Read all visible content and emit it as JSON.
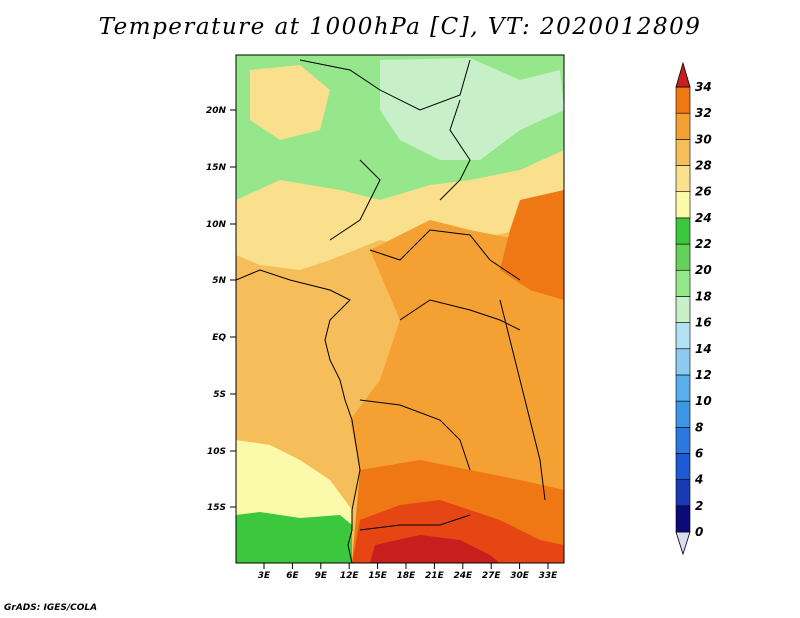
{
  "title": "Temperature at 1000hPa [C], VT: 2020012809",
  "footer": "GrADS: IGES/COLA",
  "map": {
    "lat_labels": [
      "20N",
      "15N",
      "10N",
      "5N",
      "EQ",
      "5S",
      "10S",
      "15S"
    ],
    "lon_labels": [
      "3E",
      "6E",
      "9E",
      "12E",
      "15E",
      "18E",
      "21E",
      "24E",
      "27E",
      "30E",
      "33E"
    ]
  },
  "colorbar": {
    "levels": [
      "0",
      "2",
      "4",
      "6",
      "8",
      "10",
      "12",
      "14",
      "16",
      "18",
      "20",
      "22",
      "24",
      "26",
      "28",
      "30",
      "32",
      "34"
    ],
    "colors": [
      "#0a0a78",
      "#1a3ab4",
      "#1e5ad2",
      "#2a78e0",
      "#3c96e6",
      "#5aaeec",
      "#8ccaf0",
      "#b4e0f4",
      "#c8f0c8",
      "#96e68c",
      "#64d25a",
      "#3cc83c",
      "#fafaaa",
      "#fae08c",
      "#f5be5a",
      "#f5a032",
      "#f07814",
      "#e64614",
      "#c81e1e"
    ]
  }
}
